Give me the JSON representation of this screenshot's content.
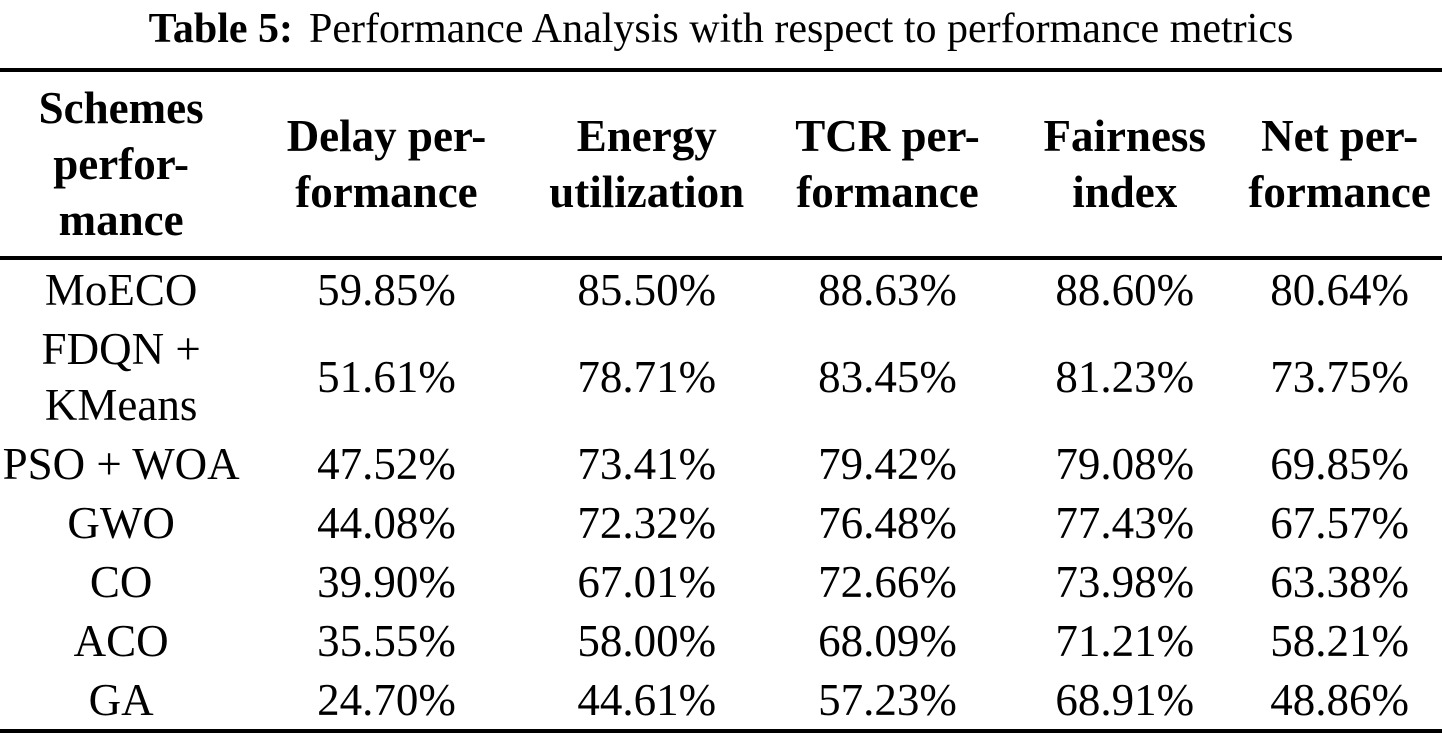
{
  "caption": {
    "label": "Table 5:",
    "text": "Performance Analysis with respect to performance metrics"
  },
  "colors": {
    "background": "#ffffff",
    "text": "#000000",
    "rule": "#000000"
  },
  "table": {
    "columns": [
      {
        "label": "Schemes performance",
        "lines": [
          "Schemes",
          "perfor-",
          "mance"
        ]
      },
      {
        "label": "Delay performance",
        "lines": [
          "Delay per-",
          "formance"
        ]
      },
      {
        "label": "Energy utilization",
        "lines": [
          "Energy",
          "utilization"
        ]
      },
      {
        "label": "TCR performance",
        "lines": [
          "TCR per-",
          "formance"
        ]
      },
      {
        "label": "Fairness index",
        "lines": [
          "Fairness",
          "index"
        ]
      },
      {
        "label": "Net performance",
        "lines": [
          "Net per-",
          "formance"
        ]
      }
    ],
    "rows": [
      {
        "scheme": "MoECO",
        "scheme_lines": [
          "MoECO"
        ],
        "values": [
          "59.85%",
          "85.50%",
          "88.63%",
          "88.60%",
          "80.64%"
        ]
      },
      {
        "scheme": "FDQN + KMeans",
        "scheme_lines": [
          "FDQN +",
          "KMeans"
        ],
        "values": [
          "51.61%",
          "78.71%",
          "83.45%",
          "81.23%",
          "73.75%"
        ]
      },
      {
        "scheme": "PSO + WOA",
        "scheme_lines": [
          "PSO + WOA"
        ],
        "values": [
          "47.52%",
          "73.41%",
          "79.42%",
          "79.08%",
          "69.85%"
        ]
      },
      {
        "scheme": "GWO",
        "scheme_lines": [
          "GWO"
        ],
        "values": [
          "44.08%",
          "72.32%",
          "76.48%",
          "77.43%",
          "67.57%"
        ]
      },
      {
        "scheme": "CO",
        "scheme_lines": [
          "CO"
        ],
        "values": [
          "39.90%",
          "67.01%",
          "72.66%",
          "73.98%",
          "63.38%"
        ]
      },
      {
        "scheme": "ACO",
        "scheme_lines": [
          "ACO"
        ],
        "values": [
          "35.55%",
          "58.00%",
          "68.09%",
          "71.21%",
          "58.21%"
        ]
      },
      {
        "scheme": "GA",
        "scheme_lines": [
          "GA"
        ],
        "values": [
          "24.70%",
          "44.61%",
          "57.23%",
          "68.91%",
          "48.86%"
        ]
      }
    ]
  }
}
